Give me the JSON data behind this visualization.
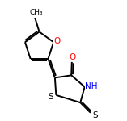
{
  "bg_color": "#ffffff",
  "bond_color": "#000000",
  "bond_lw": 1.4,
  "dbo": 0.06,
  "fs": 7.0,
  "figsize": [
    1.57,
    1.5
  ],
  "dpi": 100,
  "red": "#ff0000",
  "blue": "#0000ff",
  "black": "#000000",
  "xlim": [
    0.0,
    5.2
  ],
  "ylim": [
    0.3,
    5.0
  ]
}
